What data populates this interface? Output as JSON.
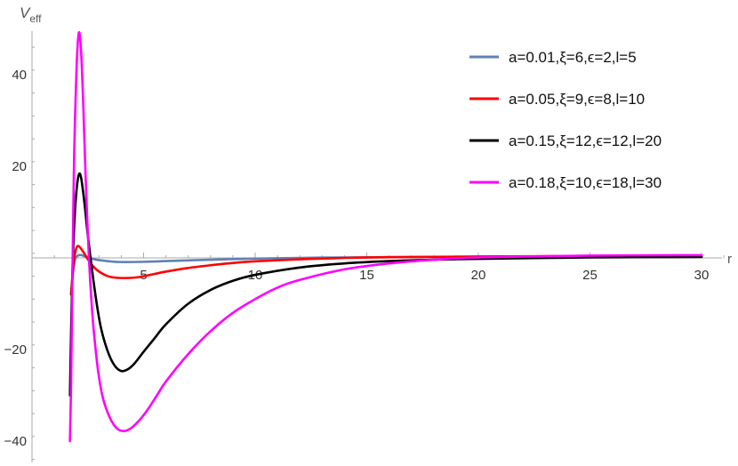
{
  "chart_data": {
    "type": "line",
    "xlabel": "r",
    "ylabel_main": "V",
    "ylabel_sub": "eff",
    "xlim": [
      0,
      30
    ],
    "ylim": [
      -44,
      50
    ],
    "x_ticks": [
      5,
      10,
      15,
      20,
      25,
      30
    ],
    "y_ticks": [
      -40,
      -20,
      20,
      40
    ],
    "grid": false,
    "legend_position": "top-right",
    "series": [
      {
        "name": "a=0.01,ξ=6,ϵ=2,l=5",
        "color": "#5E81B5",
        "x": [
          1.75,
          1.9,
          2.1,
          2.4,
          2.8,
          3.2,
          3.6,
          4,
          5,
          6,
          7,
          8,
          10,
          12,
          14,
          16,
          20,
          25,
          30
        ],
        "y": [
          -8.0,
          -1.0,
          0.6,
          0.3,
          -0.3,
          -0.6,
          -0.8,
          -0.9,
          -0.85,
          -0.7,
          -0.55,
          -0.4,
          -0.15,
          0.0,
          0.1,
          0.15,
          0.25,
          0.35,
          0.4
        ]
      },
      {
        "name": "a=0.05,ξ=9,ϵ=8,l=10",
        "color": "#FF0000",
        "x": [
          1.75,
          1.85,
          1.95,
          2.05,
          2.2,
          2.4,
          2.6,
          2.9,
          3.3,
          3.7,
          4.2,
          4.6,
          5,
          5.5,
          6,
          7,
          8,
          9,
          10,
          12,
          14,
          16,
          20,
          25,
          30
        ],
        "y": [
          -8.0,
          -2.0,
          1.5,
          2.6,
          2.0,
          0.5,
          -1.0,
          -2.6,
          -3.8,
          -4.3,
          -4.4,
          -4.3,
          -4.0,
          -3.5,
          -3.0,
          -2.2,
          -1.6,
          -1.1,
          -0.75,
          -0.3,
          0.0,
          0.15,
          0.3,
          0.4,
          0.45
        ]
      },
      {
        "name": "a=0.15,ξ=12,ϵ=12,l=20",
        "color": "#000000",
        "x": [
          1.7,
          1.8,
          1.9,
          2.0,
          2.1,
          2.2,
          2.35,
          2.5,
          2.7,
          2.9,
          3.1,
          3.4,
          3.7,
          4.0,
          4.3,
          4.6,
          5,
          5.5,
          6,
          7,
          8,
          9,
          10,
          12,
          14,
          16,
          18,
          20,
          25,
          30
        ],
        "y": [
          -30,
          -5,
          8,
          15,
          18.2,
          17.5,
          12,
          5,
          -3,
          -10,
          -15.5,
          -20.5,
          -23.5,
          -24.7,
          -24.3,
          -23,
          -20.5,
          -17.5,
          -14.5,
          -10,
          -7,
          -5,
          -3.7,
          -2.1,
          -1.2,
          -0.7,
          -0.4,
          -0.2,
          0.1,
          0.2
        ]
      },
      {
        "name": "a=0.18,ξ=10,ϵ=18,l=30",
        "color": "#FF00FF",
        "x": [
          1.7,
          1.75,
          1.8,
          1.85,
          1.9,
          2.0,
          2.1,
          2.2,
          2.3,
          2.4,
          2.55,
          2.7,
          2.85,
          3.0,
          3.2,
          3.5,
          3.8,
          4.1,
          4.4,
          4.8,
          5.2,
          5.6,
          6,
          7,
          8,
          9,
          10,
          11,
          12,
          14,
          16,
          18,
          20,
          25,
          30
        ],
        "y": [
          -40,
          -28,
          -8,
          10,
          25,
          42,
          49.2,
          45,
          33,
          18,
          0,
          -12,
          -20,
          -26,
          -31,
          -35,
          -37.2,
          -37.8,
          -37.3,
          -35.5,
          -33,
          -30,
          -27,
          -21,
          -16,
          -12,
          -9,
          -6.5,
          -4.8,
          -2.5,
          -1.2,
          -0.4,
          0.1,
          0.5,
          0.6
        ]
      }
    ]
  }
}
